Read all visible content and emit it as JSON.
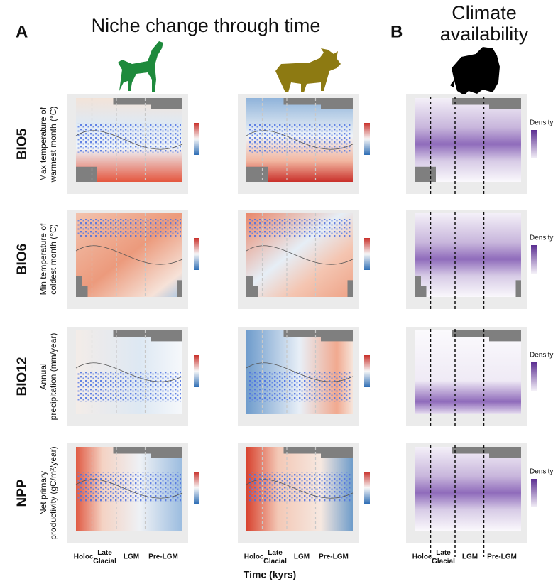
{
  "panel_labels": [
    "A",
    "B"
  ],
  "titles": {
    "niche": "Niche change through time",
    "climate": [
      "Climate",
      "availability"
    ]
  },
  "rows": [
    {
      "code": "BIO5",
      "label": [
        "Max temperature of",
        "warmest month (°C)"
      ]
    },
    {
      "code": "BIO6",
      "label": [
        "Min temperature of",
        "coldest month (°C)"
      ]
    },
    {
      "code": "BIO12",
      "label": [
        "Annual",
        "precipitation (mm/year)"
      ]
    },
    {
      "code": "NPP",
      "label": [
        "Net primary",
        "productivity (gC/m²/year)"
      ]
    }
  ],
  "periods": [
    "Holoc.",
    "Late Glacial",
    "LGM",
    "Pre-LGM"
  ],
  "x_axis_label": "Time (kyrs)",
  "legend_title": "Density"
}
